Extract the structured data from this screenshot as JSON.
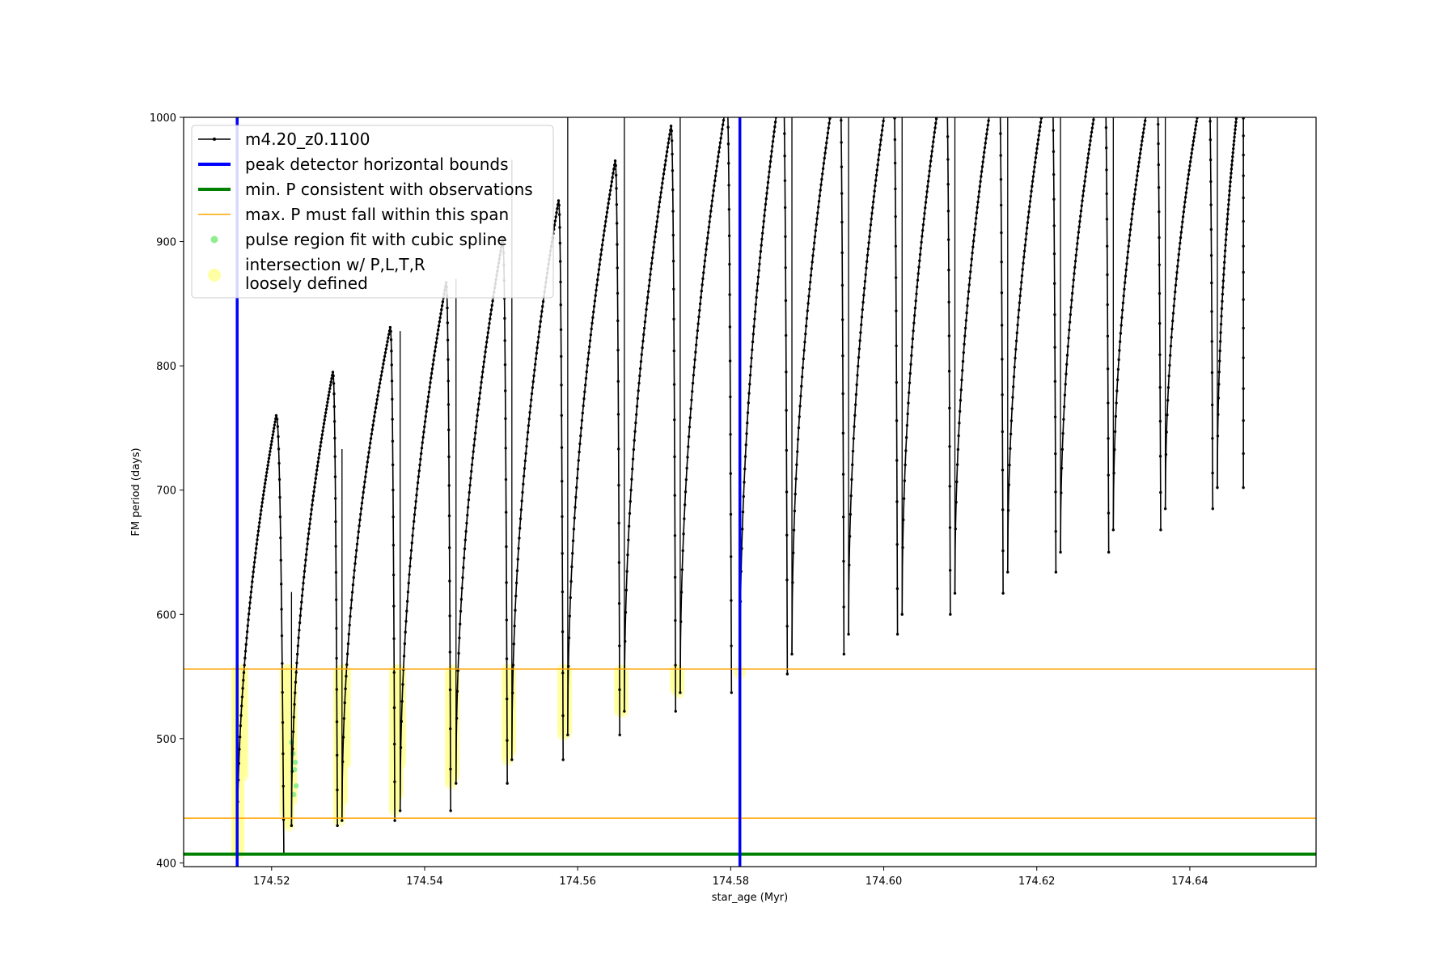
{
  "chart_data": {
    "type": "line",
    "xlabel": "star_age (Myr)",
    "ylabel": "FM period (days)",
    "xlim": [
      174.5085,
      174.6565
    ],
    "ylim": [
      397,
      1000
    ],
    "x_ticks": [
      "174.52",
      "174.54",
      "174.56",
      "174.58",
      "174.60",
      "174.62",
      "174.64"
    ],
    "y_ticks": [
      "400",
      "500",
      "600",
      "700",
      "800",
      "900",
      "1000"
    ],
    "grid": false,
    "legend_position": "upper left",
    "legend": [
      {
        "label": "m4.20_z0.1100",
        "kind": "line-marker",
        "color": "#000000"
      },
      {
        "label": "peak detector horizontal bounds",
        "kind": "line",
        "color": "#0000ff"
      },
      {
        "label": "min. P consistent with observations",
        "kind": "line",
        "color": "#008000"
      },
      {
        "label": "max. P must fall within this span",
        "kind": "thin-line",
        "color": "#ffa500"
      },
      {
        "label": "pulse region fit with cubic spline",
        "kind": "dot",
        "color": "#90ee90"
      },
      {
        "label_line1": "intersection w/ P,L,T,R",
        "label_line2": "loosely defined",
        "kind": "big-dot",
        "color": "#ffff99"
      }
    ],
    "series": [
      {
        "name": "m4.20_z0.1100",
        "color": "#000000",
        "pulse_cycles": [
          {
            "x_start": 174.5155,
            "x_peak": 174.5206,
            "x_end": 174.5216,
            "y_min": 407,
            "y_peak": 760,
            "spike_top": 625
          },
          {
            "x_start": 174.5226,
            "x_peak": 174.528,
            "x_end": 174.5286,
            "y_min": 430,
            "y_peak": 795,
            "spike_top": 618
          },
          {
            "x_start": 174.5292,
            "x_peak": 174.5355,
            "x_end": 174.5361,
            "y_min": 434,
            "y_peak": 831,
            "spike_top": 733
          },
          {
            "x_start": 174.5368,
            "x_peak": 174.5428,
            "x_end": 174.5434,
            "y_min": 442,
            "y_peak": 867,
            "spike_top": 828
          },
          {
            "x_start": 174.5441,
            "x_peak": 174.5502,
            "x_end": 174.5508,
            "y_min": 464,
            "y_peak": 902,
            "spike_top": 870
          },
          {
            "x_start": 174.5514,
            "x_peak": 174.5575,
            "x_end": 174.5581,
            "y_min": 483,
            "y_peak": 933,
            "spike_top": 966
          },
          {
            "x_start": 174.5587,
            "x_peak": 174.5649,
            "x_end": 174.5655,
            "y_min": 503,
            "y_peak": 965,
            "spike_top": 1000
          },
          {
            "x_start": 174.5661,
            "x_peak": 174.5722,
            "x_end": 174.5728,
            "y_min": 522,
            "y_peak": 993,
            "spike_top": 1000
          },
          {
            "x_start": 174.5734,
            "x_peak": 174.5795,
            "x_end": 174.5801,
            "y_min": 537,
            "y_peak": 1015,
            "spike_top": 1000
          },
          {
            "x_start": 174.5812,
            "x_peak": 174.5868,
            "x_end": 174.5874,
            "y_min": 552,
            "y_peak": 1040,
            "spike_top": 1000
          },
          {
            "x_start": 174.588,
            "x_peak": 174.5942,
            "x_end": 174.5948,
            "y_min": 568,
            "y_peak": 1050,
            "spike_top": 1000
          },
          {
            "x_start": 174.5954,
            "x_peak": 174.6012,
            "x_end": 174.6018,
            "y_min": 584,
            "y_peak": 1050,
            "spike_top": 1000
          },
          {
            "x_start": 174.6024,
            "x_peak": 174.6081,
            "x_end": 174.6087,
            "y_min": 600,
            "y_peak": 1050,
            "spike_top": 1000
          },
          {
            "x_start": 174.6093,
            "x_peak": 174.615,
            "x_end": 174.6156,
            "y_min": 617,
            "y_peak": 1050,
            "spike_top": 1000
          },
          {
            "x_start": 174.6162,
            "x_peak": 174.6219,
            "x_end": 174.6225,
            "y_min": 634,
            "y_peak": 1050,
            "spike_top": 1000
          },
          {
            "x_start": 174.6231,
            "x_peak": 174.6288,
            "x_end": 174.6294,
            "y_min": 650,
            "y_peak": 1050,
            "spike_top": 1000
          },
          {
            "x_start": 174.63,
            "x_peak": 174.6356,
            "x_end": 174.6362,
            "y_min": 668,
            "y_peak": 1050,
            "spike_top": 1000
          },
          {
            "x_start": 174.6368,
            "x_peak": 174.6424,
            "x_end": 174.643,
            "y_min": 685,
            "y_peak": 1050,
            "spike_top": 1000
          },
          {
            "x_start": 174.6436,
            "x_peak": 174.647,
            "x_end": 174.647,
            "y_min": 702,
            "y_peak": 1050,
            "spike_top": 1000
          }
        ]
      },
      {
        "name": "peak detector horizontal bounds",
        "color": "#0000ff",
        "vertical_lines_x": [
          174.5155,
          174.5812
        ]
      },
      {
        "name": "min. P consistent with observations",
        "color": "#008000",
        "horizontal_line_y": 407
      },
      {
        "name": "max. P must fall within this span",
        "color": "#ffa500",
        "horizontal_lines_y": [
          436,
          556
        ]
      },
      {
        "name": "pulse region fit with cubic spline",
        "color": "#90ee90",
        "points": [
          {
            "x": 174.5228,
            "y": 488
          },
          {
            "x": 174.523,
            "y": 475
          },
          {
            "x": 174.5232,
            "y": 462
          },
          {
            "x": 174.5226,
            "y": 497
          },
          {
            "x": 174.5229,
            "y": 455
          },
          {
            "x": 174.5231,
            "y": 481
          }
        ]
      },
      {
        "name": "intersection w/ P,L,T,R loosely defined",
        "color": "#ffff99",
        "vertical_bands": [
          {
            "x": 174.5155,
            "y_from": 407,
            "y_to": 556
          },
          {
            "x": 174.5157,
            "y_from": 410,
            "y_to": 556
          },
          {
            "x": 174.5162,
            "y_from": 470,
            "y_to": 556
          },
          {
            "x": 174.5218,
            "y_from": 440,
            "y_to": 556
          },
          {
            "x": 174.5222,
            "y_from": 430,
            "y_to": 556
          },
          {
            "x": 174.5226,
            "y_from": 450,
            "y_to": 556
          },
          {
            "x": 174.5288,
            "y_from": 434,
            "y_to": 556
          },
          {
            "x": 174.5292,
            "y_from": 450,
            "y_to": 556
          },
          {
            "x": 174.5296,
            "y_from": 480,
            "y_to": 556
          },
          {
            "x": 174.5361,
            "y_from": 442,
            "y_to": 556
          },
          {
            "x": 174.5365,
            "y_from": 455,
            "y_to": 556
          },
          {
            "x": 174.5368,
            "y_from": 480,
            "y_to": 556
          },
          {
            "x": 174.5434,
            "y_from": 464,
            "y_to": 556
          },
          {
            "x": 174.5438,
            "y_from": 470,
            "y_to": 556
          },
          {
            "x": 174.5508,
            "y_from": 483,
            "y_to": 556
          },
          {
            "x": 174.5512,
            "y_from": 490,
            "y_to": 556
          },
          {
            "x": 174.5581,
            "y_from": 503,
            "y_to": 556
          },
          {
            "x": 174.5585,
            "y_from": 505,
            "y_to": 556
          },
          {
            "x": 174.5655,
            "y_from": 522,
            "y_to": 556
          },
          {
            "x": 174.5659,
            "y_from": 522,
            "y_to": 556
          },
          {
            "x": 174.5728,
            "y_from": 540,
            "y_to": 556
          },
          {
            "x": 174.5732,
            "y_from": 537,
            "y_to": 556
          },
          {
            "x": 174.5812,
            "y_from": 552,
            "y_to": 556
          }
        ]
      }
    ]
  }
}
